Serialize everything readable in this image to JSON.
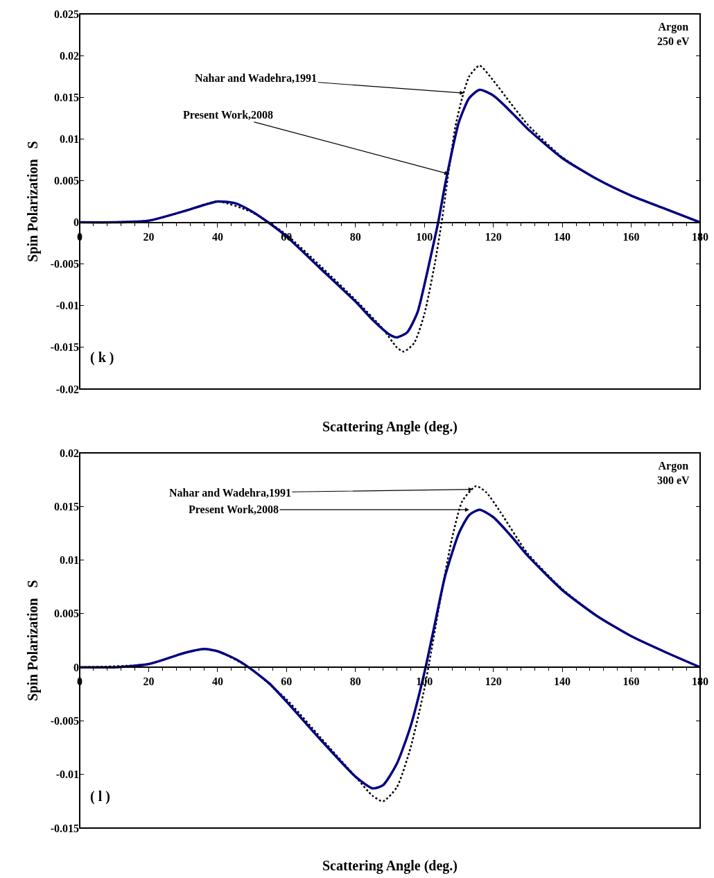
{
  "chart_data": [
    {
      "type": "line",
      "xlabel": "Scattering Angle (deg.)",
      "ylabel": "Spin Polarization   S",
      "xlim": [
        0,
        180
      ],
      "xticks": [
        0,
        20,
        40,
        60,
        80,
        100,
        120,
        140,
        160,
        180
      ],
      "ylim": [
        -0.02,
        0.025
      ],
      "yticks": [
        -0.02,
        -0.015,
        -0.01,
        -0.005,
        0,
        0.005,
        0.01,
        0.015,
        0.02,
        0.025
      ],
      "series": [
        {
          "color": "#000000",
          "line_style": "dotted",
          "x": [
            0,
            20,
            30,
            40,
            50,
            60,
            70,
            80,
            88,
            92,
            94,
            97,
            100,
            103,
            105,
            107,
            109,
            111,
            113,
            116,
            120,
            125,
            130,
            140,
            150,
            160,
            170,
            180
          ],
          "values": [
            0,
            0.0002,
            0.0013,
            0.0025,
            0.0012,
            -0.0015,
            -0.0053,
            -0.0093,
            -0.0128,
            -0.015,
            -0.0155,
            -0.0145,
            -0.011,
            -0.005,
            0,
            0.006,
            0.0115,
            0.015,
            0.0175,
            0.0188,
            0.017,
            0.0143,
            0.0117,
            0.0078,
            0.0052,
            0.0032,
            0.0016,
            0
          ]
        },
        {
          "color": "#000080",
          "line_style": "solid",
          "x": [
            0,
            10,
            20,
            30,
            40,
            45,
            50,
            55,
            60,
            70,
            80,
            85,
            90,
            92,
            95,
            98,
            100,
            102,
            104,
            106,
            108,
            110,
            113,
            116,
            120,
            125,
            130,
            140,
            150,
            160,
            170,
            180
          ],
          "values": [
            0,
            0,
            0.0002,
            0.0013,
            0.0025,
            0.0023,
            0.0013,
            -0.0001,
            -0.0017,
            -0.0056,
            -0.0095,
            -0.0117,
            -0.0135,
            -0.0138,
            -0.0132,
            -0.0108,
            -0.0075,
            -0.0038,
            0,
            0.0045,
            0.0085,
            0.012,
            0.0149,
            0.0159,
            0.0152,
            0.0133,
            0.0112,
            0.0077,
            0.0052,
            0.0032,
            0.0016,
            0
          ]
        }
      ],
      "annotations": [
        {
          "text": "Nahar and Wadehra,1991",
          "x": 111.5,
          "y": 0.0155
        },
        {
          "text": "Present Work,2008",
          "x": 107,
          "y": 0.0058
        },
        "Argon\n250 eV",
        "( k )"
      ]
    },
    {
      "type": "line",
      "xlabel": "Scattering Angle (deg.)",
      "ylabel": "Spin Polarization   S",
      "xlim": [
        0,
        180
      ],
      "xticks": [
        0,
        20,
        40,
        60,
        80,
        100,
        120,
        140,
        160,
        180
      ],
      "ylim": [
        -0.015,
        0.02
      ],
      "yticks": [
        -0.015,
        -0.01,
        -0.005,
        0,
        0.005,
        0.01,
        0.015,
        0.02
      ],
      "series": [
        {
          "color": "#000000",
          "line_style": "dotted",
          "x": [
            0,
            20,
            30,
            36,
            40,
            49,
            60,
            70,
            80,
            85,
            88,
            92,
            96,
            100,
            102,
            105,
            108,
            111,
            115,
            118,
            122,
            130,
            140,
            150,
            160,
            170,
            180
          ],
          "values": [
            0,
            0.0003,
            0.0013,
            0.0017,
            0.0015,
            0,
            -0.003,
            -0.0066,
            -0.0102,
            -0.012,
            -0.0125,
            -0.0112,
            -0.0075,
            -0.002,
            0.0015,
            0.007,
            0.012,
            0.0155,
            0.0169,
            0.0163,
            0.0145,
            0.0106,
            0.0073,
            0.0048,
            0.0029,
            0.0014,
            0
          ]
        },
        {
          "color": "#000080",
          "line_style": "solid",
          "x": [
            0,
            10,
            20,
            30,
            36,
            40,
            45,
            49,
            55,
            60,
            70,
            80,
            85,
            88,
            92,
            96,
            100,
            103,
            106,
            110,
            113,
            116,
            120,
            125,
            130,
            140,
            150,
            160,
            170,
            180
          ],
          "values": [
            0,
            0,
            0.0003,
            0.0013,
            0.0017,
            0.0015,
            0.0008,
            0,
            -0.0015,
            -0.0032,
            -0.0068,
            -0.0102,
            -0.0113,
            -0.011,
            -0.009,
            -0.0055,
            -0.0005,
            0.004,
            0.0085,
            0.0125,
            0.0142,
            0.0147,
            0.014,
            0.0123,
            0.0104,
            0.0072,
            0.0048,
            0.0029,
            0.0014,
            0
          ]
        }
      ],
      "annotations": [
        {
          "text": "Nahar and Wadehra,1991",
          "x": 114,
          "y": 0.0166
        },
        {
          "text": "Present Work,2008",
          "x": 113,
          "y": 0.0147
        },
        "Argon\n300 eV",
        "( l )"
      ]
    }
  ]
}
